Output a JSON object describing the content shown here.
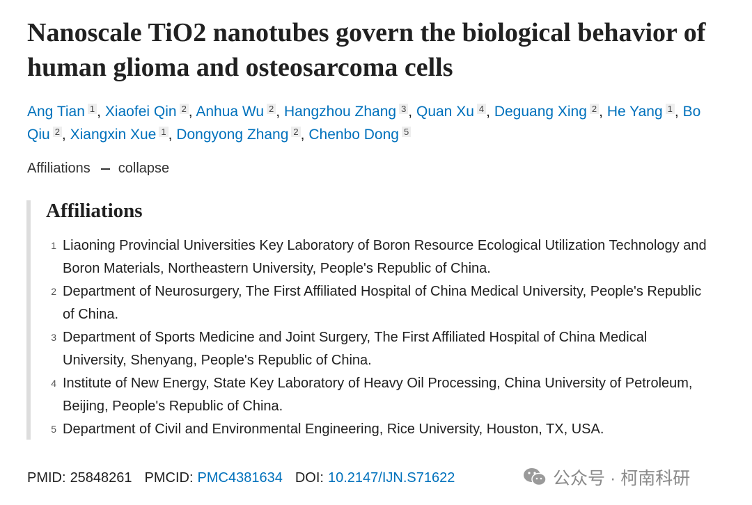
{
  "title": "Nanoscale TiO2 nanotubes govern the biological behavior of human glioma and osteosarcoma cells",
  "authors": {
    "separator": ",",
    "list": [
      {
        "name": "Ang Tian",
        "aff": "1"
      },
      {
        "name": "Xiaofei Qin",
        "aff": "2"
      },
      {
        "name": "Anhua Wu",
        "aff": "2"
      },
      {
        "name": "Hangzhou Zhang",
        "aff": "3"
      },
      {
        "name": "Quan Xu",
        "aff": "4"
      },
      {
        "name": "Deguang Xing",
        "aff": "2"
      },
      {
        "name": "He Yang",
        "aff": "1"
      },
      {
        "name": "Bo Qiu",
        "aff": "2"
      },
      {
        "name": "Xiangxin Xue",
        "aff": "1"
      },
      {
        "name": "Dongyong Zhang",
        "aff": "2"
      },
      {
        "name": "Chenbo Dong",
        "aff": "5"
      }
    ]
  },
  "affiliations_toggle": {
    "label": "Affiliations",
    "action": "collapse"
  },
  "affiliations": {
    "heading": "Affiliations",
    "items": [
      {
        "number": "1",
        "text": "Liaoning Provincial Universities Key Laboratory of Boron Resource Ecological Utilization Technology and Boron Materials, Northeastern University, People's Republic of China."
      },
      {
        "number": "2",
        "text": "Department of Neurosurgery, The First Affiliated Hospital of China Medical University, People's Republic of China."
      },
      {
        "number": "3",
        "text": "Department of Sports Medicine and Joint Surgery, The First Affiliated Hospital of China Medical University, Shenyang, People's Republic of China."
      },
      {
        "number": "4",
        "text": "Institute of New Energy, State Key Laboratory of Heavy Oil Processing, China University of Petroleum, Beijing, People's Republic of China."
      },
      {
        "number": "5",
        "text": "Department of Civil and Environmental Engineering, Rice University, Houston, TX, USA."
      }
    ]
  },
  "identifiers": [
    {
      "label": "PMID:",
      "value": "25848261"
    },
    {
      "label": "PMCID:",
      "value": "PMC4381634"
    },
    {
      "label": "DOI:",
      "value": "10.2147/IJN.S71622"
    }
  ],
  "watermark": "公众号 · 柯南科研"
}
